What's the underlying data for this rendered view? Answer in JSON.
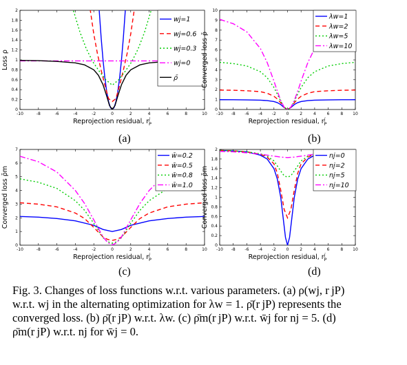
{
  "charts": [
    {
      "type": "line",
      "panel_label": "(a)",
      "xlabel": "Reprojection residual, r",
      "xlabel_sup": "j",
      "xlabel_sub": "P",
      "ylabel": "Loss ρ",
      "xlim": [
        -10,
        10
      ],
      "ylim": [
        0,
        2
      ],
      "xticks": [
        "-10",
        "-8",
        "-6",
        "-4",
        "-2",
        "0",
        "2",
        "4",
        "6",
        "8",
        "10"
      ],
      "yticks": [
        "0",
        "0.2",
        "0.4",
        "0.6",
        "0.8",
        "1",
        "1.2",
        "1.4",
        "1.6",
        "1.8",
        "2"
      ],
      "series": [
        {
          "name": "wj=1",
          "color": "#0000ff",
          "dash": "",
          "x": [
            -1.414,
            -1.2,
            -1.0,
            -0.8,
            -0.6,
            -0.4,
            -0.2,
            0,
            0.2,
            0.4,
            0.6,
            0.8,
            1.0,
            1.2,
            1.414
          ],
          "y": [
            2.0,
            1.44,
            1.0,
            0.64,
            0.36,
            0.16,
            0.04,
            0,
            0.04,
            0.16,
            0.36,
            0.64,
            1.0,
            1.44,
            2.0
          ]
        },
        {
          "name": "wj=0.6",
          "color": "#ff0000",
          "dash": "6,4",
          "x": [
            -2.4,
            -2.0,
            -1.6,
            -1.2,
            -0.8,
            -0.4,
            0,
            0.4,
            0.8,
            1.2,
            1.6,
            2.0,
            2.4
          ],
          "y": [
            2.03,
            1.52,
            1.12,
            0.79,
            0.49,
            0.22,
            0.16,
            0.22,
            0.49,
            0.79,
            1.12,
            1.52,
            2.03
          ]
        },
        {
          "name": "wj=0.3",
          "color": "#00cc00",
          "dash": "2,3",
          "x": [
            -4.2,
            -3.5,
            -2.8,
            -2.1,
            -1.4,
            -0.7,
            0,
            0.7,
            1.4,
            2.1,
            2.8,
            3.5,
            4.2
          ],
          "y": [
            1.99,
            1.56,
            1.22,
            0.96,
            0.77,
            0.6,
            0.49,
            0.6,
            0.77,
            0.96,
            1.22,
            1.56,
            1.99
          ]
        },
        {
          "name": "wj=0",
          "color": "#ff00ff",
          "dash": "8,3,2,3",
          "x": [
            -10,
            10
          ],
          "y": [
            0.98,
            0.98
          ]
        },
        {
          "name": "ρ̄",
          "color": "#000000",
          "dash": "",
          "x": [
            -10,
            -8,
            -6,
            -4,
            -3,
            -2,
            -1.5,
            -1,
            -0.6,
            -0.3,
            0,
            0.3,
            0.6,
            1,
            1.5,
            2,
            3,
            4,
            6,
            8,
            10
          ],
          "y": [
            0.99,
            0.985,
            0.97,
            0.94,
            0.9,
            0.8,
            0.69,
            0.5,
            0.27,
            0.08,
            0,
            0.08,
            0.27,
            0.5,
            0.69,
            0.8,
            0.9,
            0.94,
            0.97,
            0.985,
            0.99
          ]
        }
      ]
    },
    {
      "type": "line",
      "panel_label": "(b)",
      "xlabel": "Reprojection residual, r",
      "xlabel_sup": "j",
      "xlabel_sub": "P",
      "ylabel": "Converged loss ρ̄",
      "xlim": [
        -10,
        10
      ],
      "ylim": [
        0,
        10
      ],
      "xticks": [
        "-10",
        "-8",
        "-6",
        "-4",
        "-2",
        "0",
        "2",
        "4",
        "6",
        "8",
        "10"
      ],
      "yticks": [
        "0",
        "1",
        "2",
        "3",
        "4",
        "5",
        "6",
        "7",
        "8",
        "9",
        "10"
      ],
      "series": [
        {
          "name": "λw=1",
          "color": "#0000ff",
          "dash": "",
          "x": [
            -10,
            -8,
            -6,
            -4,
            -3,
            -2,
            -1.5,
            -1,
            -0.5,
            0,
            0.5,
            1,
            1.5,
            2,
            3,
            4,
            6,
            8,
            10
          ],
          "y": [
            0.99,
            0.985,
            0.97,
            0.94,
            0.9,
            0.8,
            0.69,
            0.5,
            0.2,
            0,
            0.2,
            0.5,
            0.69,
            0.8,
            0.9,
            0.94,
            0.97,
            0.985,
            0.99
          ]
        },
        {
          "name": "λw=2",
          "color": "#ff0000",
          "dash": "6,4",
          "x": [
            -10,
            -8,
            -6,
            -4,
            -3,
            -2,
            -1.5,
            -1,
            -0.5,
            0,
            0.5,
            1,
            1.5,
            2,
            3,
            4,
            6,
            8,
            10
          ],
          "y": [
            1.96,
            1.94,
            1.89,
            1.8,
            1.64,
            1.33,
            1.06,
            0.67,
            0.22,
            0,
            0.22,
            0.67,
            1.06,
            1.33,
            1.64,
            1.8,
            1.89,
            1.94,
            1.96
          ]
        },
        {
          "name": "λw=5",
          "color": "#00cc00",
          "dash": "2,3",
          "x": [
            -10,
            -8,
            -6,
            -4,
            -3,
            -2,
            -1.5,
            -1,
            -0.5,
            0,
            0.5,
            1,
            1.5,
            2,
            3,
            4,
            6,
            8,
            10
          ],
          "y": [
            4.76,
            4.63,
            4.39,
            3.81,
            3.21,
            2.22,
            1.55,
            0.83,
            0.24,
            0,
            0.24,
            0.83,
            1.55,
            2.22,
            3.21,
            3.81,
            4.39,
            4.63,
            4.76
          ]
        },
        {
          "name": "λw=10",
          "color": "#ff00ff",
          "dash": "8,3,2,3",
          "x": [
            -10,
            -8,
            -6,
            -4,
            -3,
            -2,
            -1.5,
            -1,
            -0.5,
            0,
            0.5,
            1,
            1.5,
            2,
            3,
            4,
            6,
            8,
            10
          ],
          "y": [
            9.09,
            8.65,
            7.83,
            6.15,
            4.74,
            2.86,
            1.84,
            0.91,
            0.24,
            0,
            0.24,
            0.91,
            1.84,
            2.86,
            4.74,
            6.15,
            7.83,
            8.65,
            9.09
          ]
        }
      ]
    },
    {
      "type": "line",
      "panel_label": "(c)",
      "xlabel": "Reprojection residual, r",
      "xlabel_sup": "j",
      "xlabel_sub": "P",
      "ylabel": "Converged loss ρ̄m",
      "xlim": [
        -10,
        10
      ],
      "ylim": [
        0,
        7
      ],
      "xticks": [
        "-10",
        "-8",
        "-6",
        "-4",
        "-2",
        "0",
        "2",
        "4",
        "6",
        "8",
        "10"
      ],
      "yticks": [
        "0",
        "1",
        "2",
        "3",
        "4",
        "5",
        "6",
        "7"
      ],
      "series": [
        {
          "name": "w̄=0.2",
          "color": "#0000ff",
          "dash": "",
          "x": [
            -10,
            -8,
            -6,
            -4,
            -2,
            -1,
            0,
            1,
            2,
            4,
            6,
            8,
            10
          ],
          "y": [
            2.1,
            2.05,
            1.95,
            1.78,
            1.45,
            1.15,
            1.0,
            1.15,
            1.45,
            1.78,
            1.95,
            2.05,
            2.1
          ]
        },
        {
          "name": "w̄=0.5",
          "color": "#ff0000",
          "dash": "6,4",
          "x": [
            -10,
            -8,
            -6,
            -4,
            -3,
            -2,
            -1,
            -0.5,
            0,
            0.5,
            1,
            2,
            3,
            4,
            6,
            8,
            10
          ],
          "y": [
            3.1,
            3.0,
            2.8,
            2.35,
            1.95,
            1.3,
            0.6,
            0.42,
            0.35,
            0.42,
            0.6,
            1.3,
            1.95,
            2.35,
            2.8,
            3.0,
            3.1
          ]
        },
        {
          "name": "w̄=0.8",
          "color": "#00cc00",
          "dash": "2,3",
          "x": [
            -10,
            -8,
            -6,
            -4,
            -3,
            -2,
            -1,
            -0.5,
            0,
            0.5,
            1,
            2,
            3,
            4,
            6,
            8,
            10
          ],
          "y": [
            4.85,
            4.6,
            4.15,
            3.25,
            2.55,
            1.6,
            0.55,
            0.25,
            0.15,
            0.25,
            0.55,
            1.6,
            2.55,
            3.25,
            4.15,
            4.6,
            4.85
          ]
        },
        {
          "name": "w̄=1.0",
          "color": "#ff00ff",
          "dash": "8,3,2,3",
          "x": [
            -10,
            -8,
            -6,
            -4,
            -3,
            -2,
            -1,
            -0.5,
            0,
            0.5,
            1,
            2,
            3,
            4,
            6,
            8,
            10
          ],
          "y": [
            6.5,
            6.1,
            5.35,
            4.0,
            3.05,
            1.85,
            0.6,
            0.2,
            0,
            0.2,
            0.6,
            1.85,
            3.05,
            4.0,
            5.35,
            6.1,
            6.5
          ]
        }
      ]
    },
    {
      "type": "line",
      "panel_label": "(d)",
      "xlabel": "Reprojection residual, r",
      "xlabel_sup": "j",
      "xlabel_sub": "P",
      "ylabel": "Converged loss ρ̄m",
      "xlim": [
        -10,
        10
      ],
      "ylim": [
        0,
        2
      ],
      "xticks": [
        "-10",
        "-8",
        "-6",
        "-4",
        "-2",
        "0",
        "2",
        "4",
        "6",
        "8",
        "10"
      ],
      "yticks": [
        "0",
        "0.2",
        "0.4",
        "0.6",
        "0.8",
        "1",
        "1.2",
        "1.4",
        "1.6",
        "1.8",
        "2"
      ],
      "series": [
        {
          "name": "nj=0",
          "color": "#0000ff",
          "dash": "",
          "x": [
            -10,
            -8,
            -6,
            -4,
            -3,
            -2,
            -1.5,
            -1,
            -0.6,
            -0.3,
            0,
            0.3,
            0.6,
            1,
            1.5,
            2,
            3,
            4,
            6,
            8,
            10
          ],
          "y": [
            1.98,
            1.97,
            1.95,
            1.88,
            1.8,
            1.6,
            1.38,
            1.0,
            0.52,
            0.16,
            0,
            0.16,
            0.52,
            1.0,
            1.38,
            1.6,
            1.8,
            1.88,
            1.95,
            1.97,
            1.98
          ]
        },
        {
          "name": "nj=2",
          "color": "#ff0000",
          "dash": "6,4",
          "x": [
            -10,
            -8,
            -6,
            -4,
            -3,
            -2,
            -1.5,
            -1,
            -0.5,
            0,
            0.5,
            1,
            1.5,
            2,
            3,
            4,
            6,
            8,
            10
          ],
          "y": [
            1.98,
            1.97,
            1.95,
            1.9,
            1.84,
            1.7,
            1.5,
            1.15,
            0.75,
            0.57,
            0.75,
            1.15,
            1.5,
            1.7,
            1.84,
            1.9,
            1.95,
            1.97,
            1.98
          ]
        },
        {
          "name": "nj=5",
          "color": "#00cc00",
          "dash": "2,3",
          "x": [
            -10,
            -8,
            -6,
            -4,
            -3,
            -2,
            -1,
            -0.5,
            0,
            0.5,
            1,
            2,
            3,
            4,
            6,
            8,
            10
          ],
          "y": [
            1.98,
            1.97,
            1.95,
            1.91,
            1.86,
            1.76,
            1.55,
            1.45,
            1.42,
            1.45,
            1.55,
            1.76,
            1.86,
            1.91,
            1.95,
            1.97,
            1.98
          ]
        },
        {
          "name": "nj=10",
          "color": "#ff00ff",
          "dash": "8,3,2,3",
          "x": [
            -10,
            -8,
            -6,
            -4,
            -2,
            -1,
            0,
            1,
            2,
            4,
            6,
            8,
            10
          ],
          "y": [
            1.96,
            1.95,
            1.93,
            1.9,
            1.86,
            1.84,
            1.83,
            1.84,
            1.86,
            1.9,
            1.93,
            1.95,
            1.96
          ]
        }
      ]
    }
  ],
  "caption": {
    "lines": [
      "Fig. 3. Changes of loss functions w.r.t. various parameters. (a) ρ(wj, r jP)",
      "w.r.t. wj in the alternating optimization for λw = 1. ρ̄(r jP) represents the",
      "converged loss. (b) ρ̄(r jP) w.r.t. λw. (c) ρ̄m(r jP) w.r.t. w̄j for nj = 5. (d)",
      "ρ̄m(r jP) w.r.t. nj for w̄j = 0."
    ]
  }
}
